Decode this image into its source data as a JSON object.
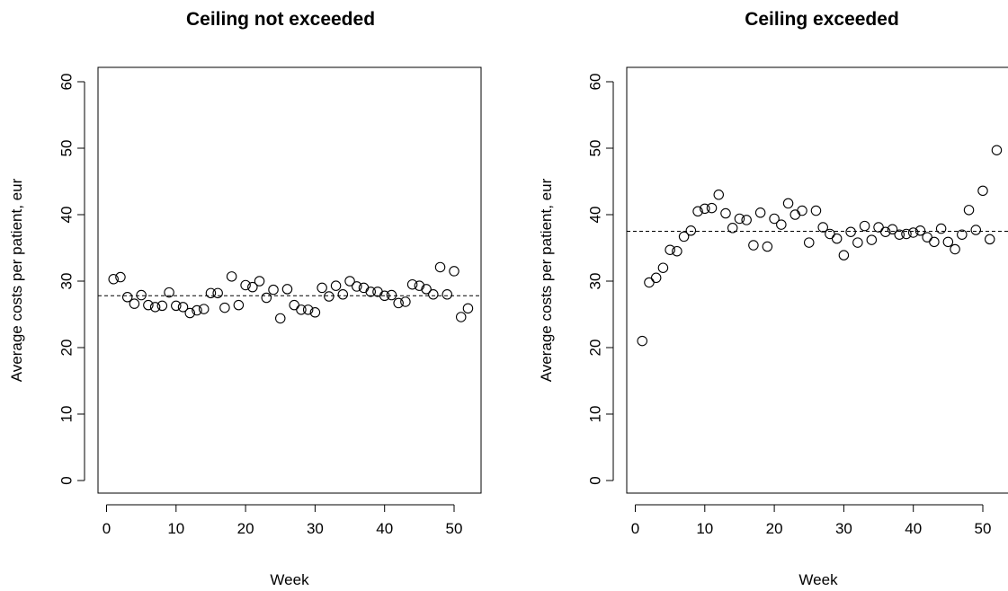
{
  "chart_data": [
    {
      "type": "scatter",
      "title": "Ceiling not exceeded",
      "xlabel": "Week",
      "ylabel": "Average costs per patient, eur",
      "xlim": [
        0,
        53
      ],
      "ylim": [
        0,
        60
      ],
      "x_ticks": [
        "0",
        "10",
        "20",
        "30",
        "40",
        "50"
      ],
      "y_ticks": [
        "0",
        "10",
        "20",
        "30",
        "40",
        "50",
        "60"
      ],
      "reference_line": {
        "style": "dashed",
        "y": 27.8
      },
      "grid": false,
      "x": [
        1,
        2,
        3,
        4,
        5,
        6,
        7,
        8,
        9,
        10,
        11,
        12,
        13,
        14,
        15,
        16,
        17,
        18,
        19,
        20,
        21,
        22,
        23,
        24,
        25,
        26,
        27,
        28,
        29,
        30,
        31,
        32,
        33,
        34,
        35,
        36,
        37,
        38,
        39,
        40,
        41,
        42,
        43,
        44,
        45,
        46,
        47,
        48,
        49,
        50,
        51,
        52
      ],
      "y": [
        30.3,
        30.6,
        27.6,
        26.6,
        27.9,
        26.4,
        26.1,
        26.3,
        28.3,
        26.3,
        26.1,
        25.2,
        25.6,
        25.8,
        28.2,
        28.2,
        26.0,
        30.7,
        26.4,
        29.4,
        29.1,
        30.0,
        27.5,
        28.7,
        24.4,
        28.8,
        26.4,
        25.7,
        25.7,
        25.3,
        29.0,
        27.7,
        29.3,
        28.0,
        30.0,
        29.2,
        29.0,
        28.4,
        28.4,
        27.8,
        27.9,
        26.7,
        26.9,
        29.5,
        29.3,
        28.8,
        28.0,
        32.1,
        28.0,
        31.5,
        24.6,
        25.9
      ]
    },
    {
      "type": "scatter",
      "title": "Ceiling exceeded",
      "xlabel": "Week",
      "ylabel": "Average costs per patient, eur",
      "xlim": [
        0,
        53
      ],
      "ylim": [
        0,
        60
      ],
      "x_ticks": [
        "0",
        "10",
        "20",
        "30",
        "40",
        "50"
      ],
      "y_ticks": [
        "0",
        "10",
        "20",
        "30",
        "40",
        "50",
        "60"
      ],
      "reference_line": {
        "style": "dashed",
        "y": 37.5
      },
      "grid": false,
      "x": [
        1,
        2,
        3,
        4,
        5,
        6,
        7,
        8,
        9,
        10,
        11,
        12,
        13,
        14,
        15,
        16,
        17,
        18,
        19,
        20,
        21,
        22,
        23,
        24,
        25,
        26,
        27,
        28,
        29,
        30,
        31,
        32,
        33,
        34,
        35,
        36,
        37,
        38,
        39,
        40,
        41,
        42,
        43,
        44,
        45,
        46,
        47,
        48,
        49,
        50,
        51,
        52
      ],
      "y": [
        21.0,
        29.8,
        30.5,
        32.0,
        34.7,
        34.5,
        36.7,
        37.6,
        40.5,
        40.9,
        41.0,
        43.0,
        40.2,
        38.0,
        39.4,
        39.2,
        35.4,
        40.3,
        35.2,
        39.4,
        38.5,
        41.7,
        40.0,
        40.6,
        35.8,
        40.6,
        38.1,
        37.1,
        36.4,
        33.9,
        37.4,
        35.8,
        38.3,
        36.2,
        38.1,
        37.4,
        37.8,
        37.0,
        37.1,
        37.3,
        37.6,
        36.6,
        35.9,
        37.9,
        35.9,
        34.8,
        37.0,
        40.7,
        37.7,
        43.6,
        36.3,
        49.7
      ]
    }
  ]
}
